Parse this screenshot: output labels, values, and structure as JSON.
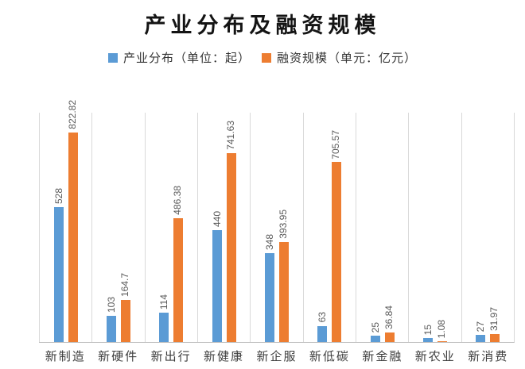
{
  "title": "产业分布及融资规模",
  "legend": [
    {
      "label": "产业分布（单位：起）",
      "color": "#5B9BD5"
    },
    {
      "label": "融资规模（单元：亿元）",
      "color": "#ED7D31"
    }
  ],
  "chart_data": {
    "type": "bar",
    "title": "产业分布及融资规模",
    "categories": [
      "新制造",
      "新硬件",
      "新出行",
      "新健康",
      "新企服",
      "新低碳",
      "新金融",
      "新农业",
      "新消费"
    ],
    "series": [
      {
        "name": "产业分布（单位：起）",
        "color": "#5B9BD5",
        "values": [
          528,
          103,
          114,
          440,
          348,
          63,
          25,
          15,
          27
        ]
      },
      {
        "name": "融资规模（单元：亿元）",
        "color": "#ED7D31",
        "values": [
          822.82,
          164.7,
          486.38,
          741.63,
          393.95,
          705.57,
          36.84,
          1.08,
          31.97
        ]
      }
    ],
    "ylim": [
      0,
      900
    ],
    "xlabel": "",
    "ylabel": "",
    "grid": "vertical-category-separators",
    "gridline_color": "#d9d9d9",
    "axis_line_color": "#bfbfbf",
    "data_labels": "rotated-90-above-bars",
    "legend_position": "top"
  }
}
